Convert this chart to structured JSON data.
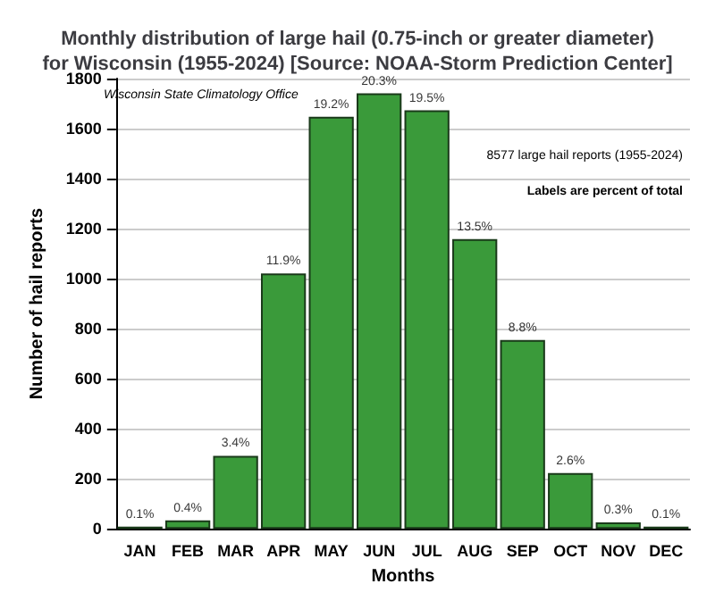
{
  "chart_data": {
    "type": "bar",
    "title": "Monthly distribution of large hail (0.75-inch or greater diameter)\nfor Wisconsin (1955-2024) [Source: NOAA-Storm Prediction Center]",
    "xlabel": "Months",
    "ylabel": "Number of hail reports",
    "categories": [
      "JAN",
      "FEB",
      "MAR",
      "APR",
      "MAY",
      "JUN",
      "JUL",
      "AUG",
      "SEP",
      "OCT",
      "NOV",
      "DEC"
    ],
    "values": [
      9,
      34,
      292,
      1021,
      1647,
      1741,
      1673,
      1158,
      755,
      223,
      26,
      9
    ],
    "color": "#3a9a3a",
    "ylim": [
      0,
      1800
    ],
    "yticks": [
      0,
      200,
      400,
      600,
      800,
      1000,
      1200,
      1400,
      1600,
      1800
    ],
    "grid": "y",
    "annotations": [
      "Wisconsin State Climatology Office",
      "8577 large hail reports (1955-2024)",
      "Labels are percent of total",
      {
        "text": "0.1%",
        "x": "JAN",
        "y": 9
      },
      {
        "text": "0.4%",
        "x": "FEB",
        "y": 34
      },
      {
        "text": "3.4%",
        "x": "MAR",
        "y": 292
      },
      {
        "text": "11.9%",
        "x": "APR",
        "y": 1021
      },
      {
        "text": "19.2%",
        "x": "MAY",
        "y": 1647
      },
      {
        "text": "20.3%",
        "x": "JUN",
        "y": 1741
      },
      {
        "text": "19.5%",
        "x": "JUL",
        "y": 1673
      },
      {
        "text": "13.5%",
        "x": "AUG",
        "y": 1158
      },
      {
        "text": "8.8%",
        "x": "SEP",
        "y": 755
      },
      {
        "text": "2.6%",
        "x": "OCT",
        "y": 223
      },
      {
        "text": "0.3%",
        "x": "NOV",
        "y": 26
      },
      {
        "text": "0.1%",
        "x": "DEC",
        "y": 9
      }
    ]
  }
}
